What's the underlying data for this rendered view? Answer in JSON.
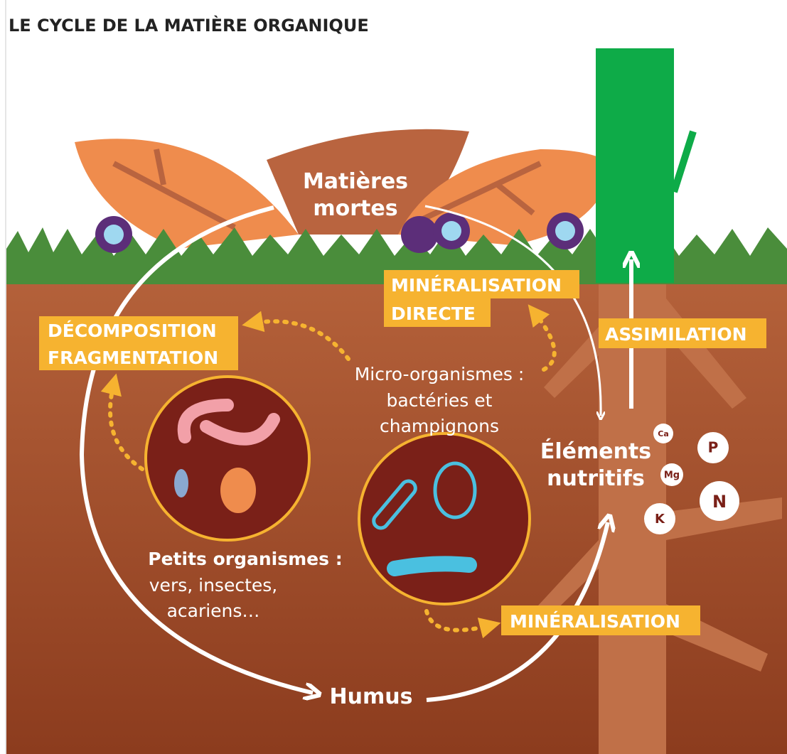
{
  "title": "LE CYCLE DE LA MATIÈRE ORGANIQUE",
  "nodes": [
    {
      "lines": [
        "Matières",
        "mortes"
      ]
    },
    {
      "lines": [
        "Petits organismes :",
        "vers, insectes,",
        "acariens…"
      ]
    },
    {
      "lines": [
        "Micro-organismes :",
        "bactéries et",
        "champignons"
      ]
    },
    {
      "lines": [
        "Éléments",
        "nutritifs"
      ]
    },
    {
      "lines": [
        "Humus"
      ]
    }
  ],
  "processes": [
    {
      "lines": [
        "DÉCOMPOSITION",
        "FRAGMENTATION"
      ]
    },
    {
      "lines": [
        "MINÉRALISATION",
        "DIRECTE"
      ]
    },
    {
      "lines": [
        "ASSIMILATION"
      ]
    },
    {
      "lines": [
        "MINÉRALISATION"
      ]
    }
  ],
  "elements": [
    "Ca",
    "P",
    "Mg",
    "N",
    "K"
  ]
}
